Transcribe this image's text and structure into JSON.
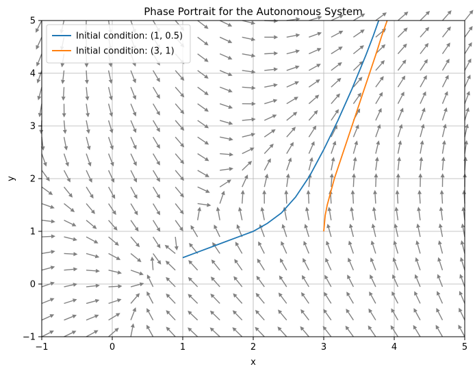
{
  "chart_data": {
    "type": "line",
    "title": "Phase Portrait for the Autonomous System",
    "xlabel": "x",
    "ylabel": "y",
    "xlim": [
      -1,
      5
    ],
    "ylim": [
      -1,
      5
    ],
    "xticks": [
      -1,
      0,
      1,
      2,
      3,
      4,
      5
    ],
    "yticks": [
      -1,
      0,
      1,
      2,
      3,
      4,
      5
    ],
    "grid": true,
    "legend_position": "top-left",
    "vector_field": {
      "description_of_system": "dx/dt = x*y - 2*x + 1, dy/dt = x*x - y",
      "x_min": -1,
      "x_max": 5,
      "y_min": -1,
      "y_max": 5,
      "n": 20,
      "color": "#808080"
    },
    "series": [
      {
        "name": "Initial condition: (1, 0.5)",
        "color": "#1f77b4",
        "x": [
          1.0,
          1.2,
          1.4,
          1.6,
          1.8,
          2.0,
          2.2,
          2.4,
          2.6,
          2.8,
          3.0,
          3.2,
          3.4,
          3.6,
          3.7,
          3.78
        ],
        "y": [
          0.5,
          0.6,
          0.7,
          0.8,
          0.9,
          1.0,
          1.15,
          1.35,
          1.65,
          2.05,
          2.55,
          3.1,
          3.7,
          4.35,
          4.7,
          5.0
        ]
      },
      {
        "name": "Initial condition: (3, 1)",
        "color": "#ff7f0e",
        "x": [
          3.0,
          3.02,
          3.05,
          3.1,
          3.15,
          3.25,
          3.35,
          3.45,
          3.55,
          3.65,
          3.75,
          3.82,
          3.9
        ],
        "y": [
          1.0,
          1.3,
          1.5,
          1.75,
          2.0,
          2.4,
          2.8,
          3.2,
          3.6,
          4.0,
          4.4,
          4.7,
          5.0
        ]
      }
    ]
  }
}
